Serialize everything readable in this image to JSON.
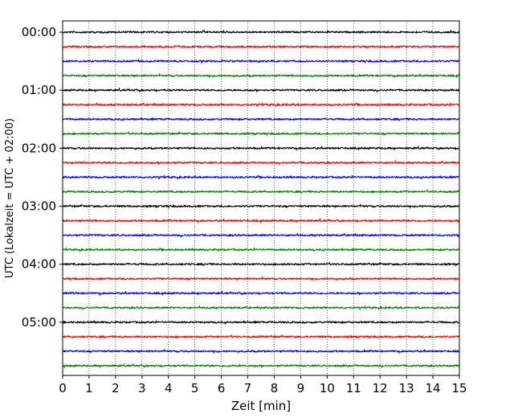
{
  "chart_data": {
    "type": "line",
    "title": "",
    "xlabel": "Zeit  [min]",
    "ylabel": "UTC (Lokalzeit = UTC + 02:00)",
    "x_ticks": [
      0,
      1,
      2,
      3,
      4,
      5,
      6,
      7,
      8,
      9,
      10,
      11,
      12,
      13,
      14,
      15
    ],
    "xlim": [
      0,
      15
    ],
    "y_ticks": [
      "00:00",
      "01:00",
      "02:00",
      "03:00",
      "04:00",
      "05:00"
    ],
    "ylim_hours": [
      0,
      6
    ],
    "row_interval_minutes": 15,
    "row_count": 24,
    "color_cycle": [
      "#000000",
      "#ff0000",
      "#0000ff",
      "#008000"
    ],
    "grid": "vertical-dotted",
    "legend": "none"
  }
}
